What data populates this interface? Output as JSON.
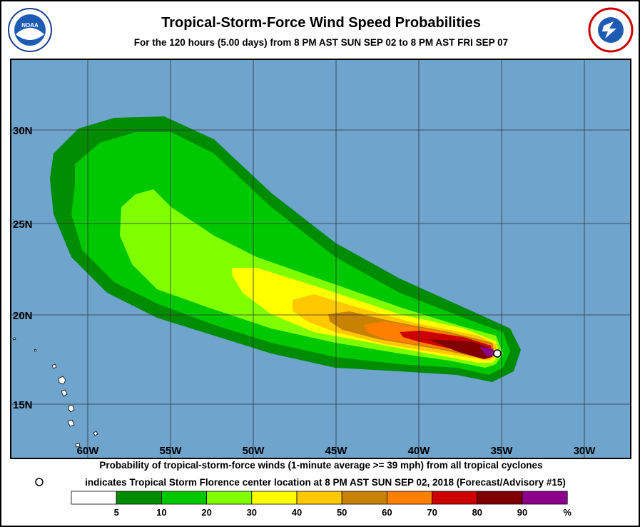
{
  "header": {
    "title": "Tropical-Storm-Force Wind Speed Probabilities",
    "subtitle": "For the 120 hours (5.00 days) from 8 PM AST SUN SEP 02 to 8 PM AST FRI SEP 07",
    "logo_left": "NOAA"
  },
  "map": {
    "latitude_labels": [
      "30N",
      "25N",
      "20N",
      "15N"
    ],
    "longitude_labels": [
      "60W",
      "55W",
      "50W",
      "45W",
      "40W",
      "35W",
      "30W"
    ]
  },
  "footer": {
    "line1": "Probability of tropical-storm-force winds (1-minute average >= 39 mph) from all tropical cyclones",
    "line2": "indicates Tropical Storm Florence center location at 8 PM AST SUN SEP 02, 2018 (Forecast/Advisory #15)"
  },
  "legend": {
    "labels": [
      5,
      10,
      20,
      30,
      40,
      50,
      60,
      70,
      80,
      90
    ],
    "unit": "%",
    "colors": [
      "#ffffff",
      "#008c00",
      "#00c800",
      "#80ff00",
      "#ffff00",
      "#ffc800",
      "#c88200",
      "#ff8000",
      "#cc0000",
      "#800000",
      "#8c008c"
    ]
  }
}
